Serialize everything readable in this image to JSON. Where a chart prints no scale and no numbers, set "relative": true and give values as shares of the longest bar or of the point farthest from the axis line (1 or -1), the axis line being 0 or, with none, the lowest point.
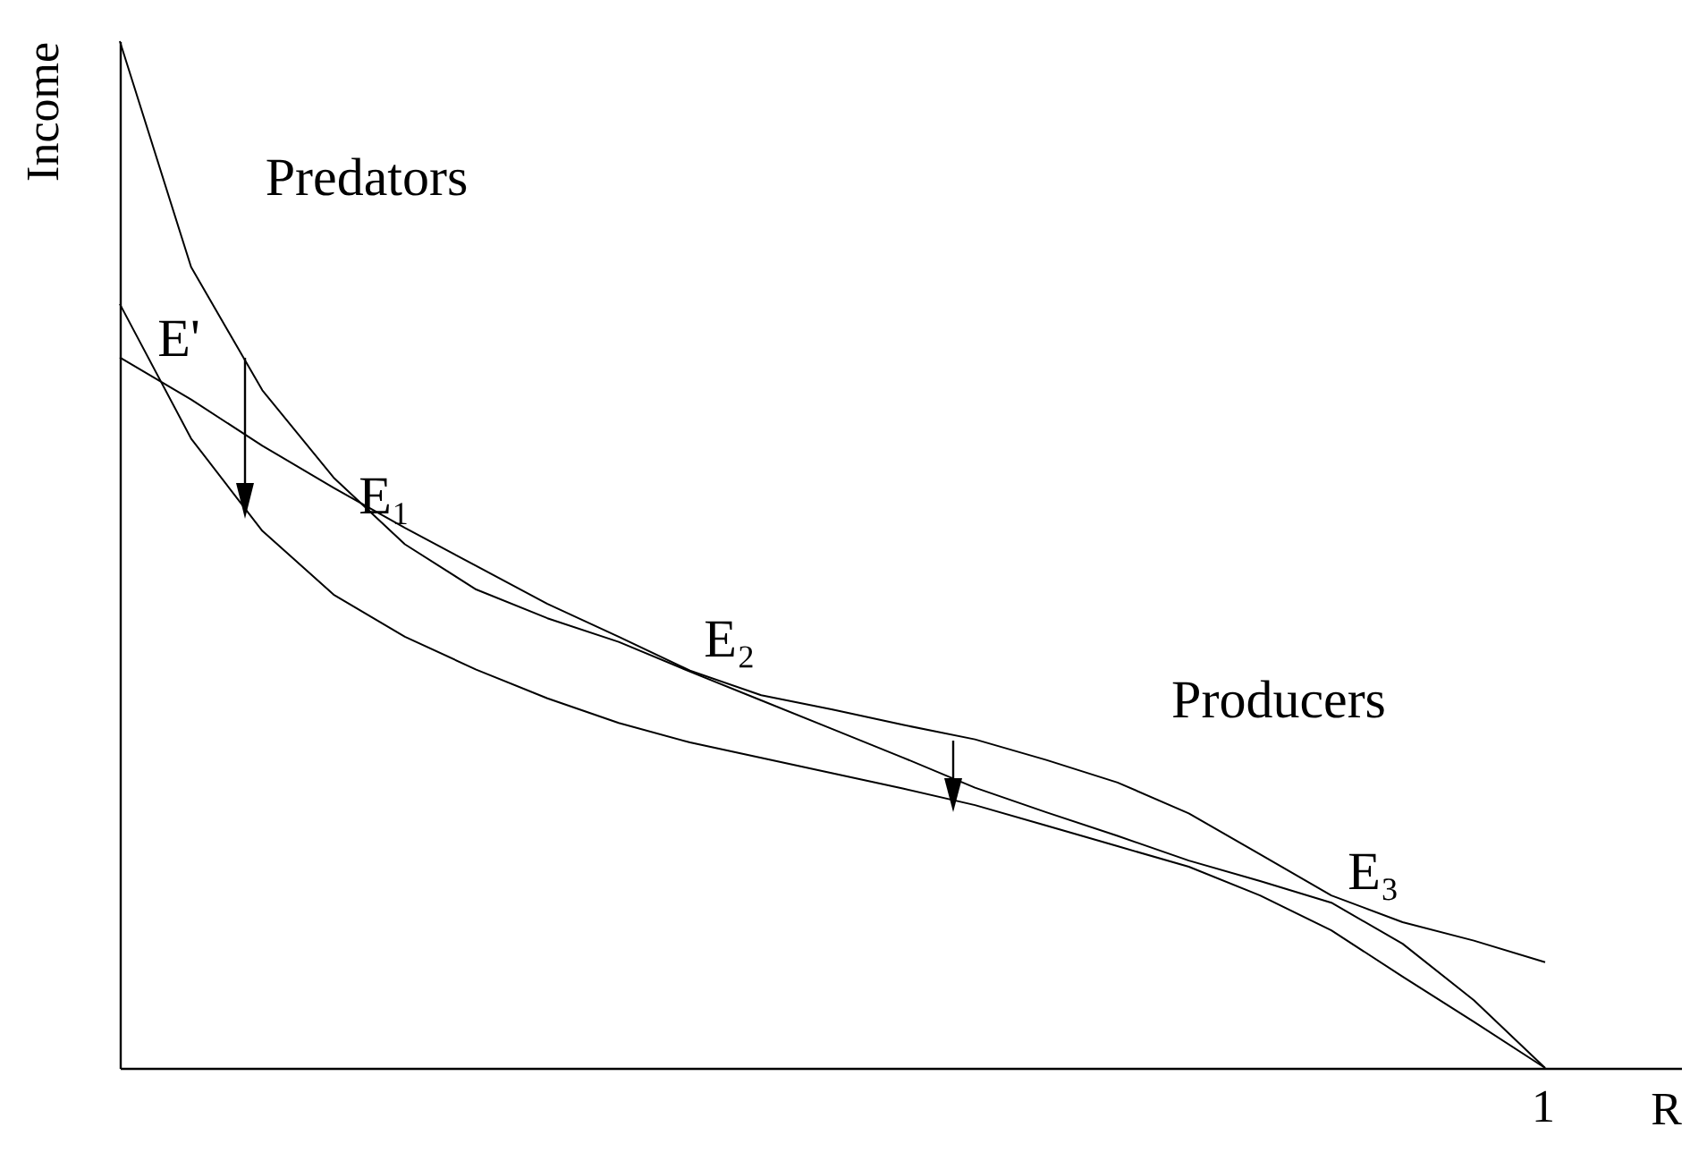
{
  "chart_data": {
    "type": "line",
    "relative": true,
    "xlabel": "R",
    "ylabel": "Income",
    "categories": [
      null,
      null,
      null,
      null,
      null,
      null,
      null,
      null,
      null,
      null,
      null,
      null,
      null,
      null,
      null,
      null,
      null,
      null,
      null,
      null,
      null
    ],
    "series": [
      {
        "color": "#000000",
        "values": [
          1,
          0.78,
          0.66,
          0.575,
          0.51,
          0.466,
          0.438,
          0.415,
          0.386,
          0.358,
          0.33,
          0.302,
          0.273,
          0.249,
          0.226,
          0.202,
          0.182,
          0.161,
          0.121,
          0.066,
          0
        ]
      },
      {
        "color": "#000000",
        "values": [
          0.744,
          0.613,
          0.523,
          0.461,
          0.42,
          0.388,
          0.36,
          0.336,
          0.317,
          0.302,
          0.287,
          0.272,
          0.256,
          0.236,
          0.216,
          0.196,
          0.168,
          0.134,
          0.089,
          0.045,
          0
        ]
      },
      {
        "color": "#000000",
        "values": [
          0.692,
          0.651,
          0.606,
          0.565,
          0.526,
          0.489,
          0.452,
          0.42,
          0.387,
          0.363,
          0.349,
          0.334,
          0.32,
          0.3,
          0.278,
          0.248,
          0.208,
          0.168,
          0.142,
          0.124,
          0.103
        ]
      }
    ],
    "annotations": [
      "Predators",
      "Producers",
      "E'",
      "E₁",
      "E₂",
      "E₃",
      "1"
    ]
  }
}
